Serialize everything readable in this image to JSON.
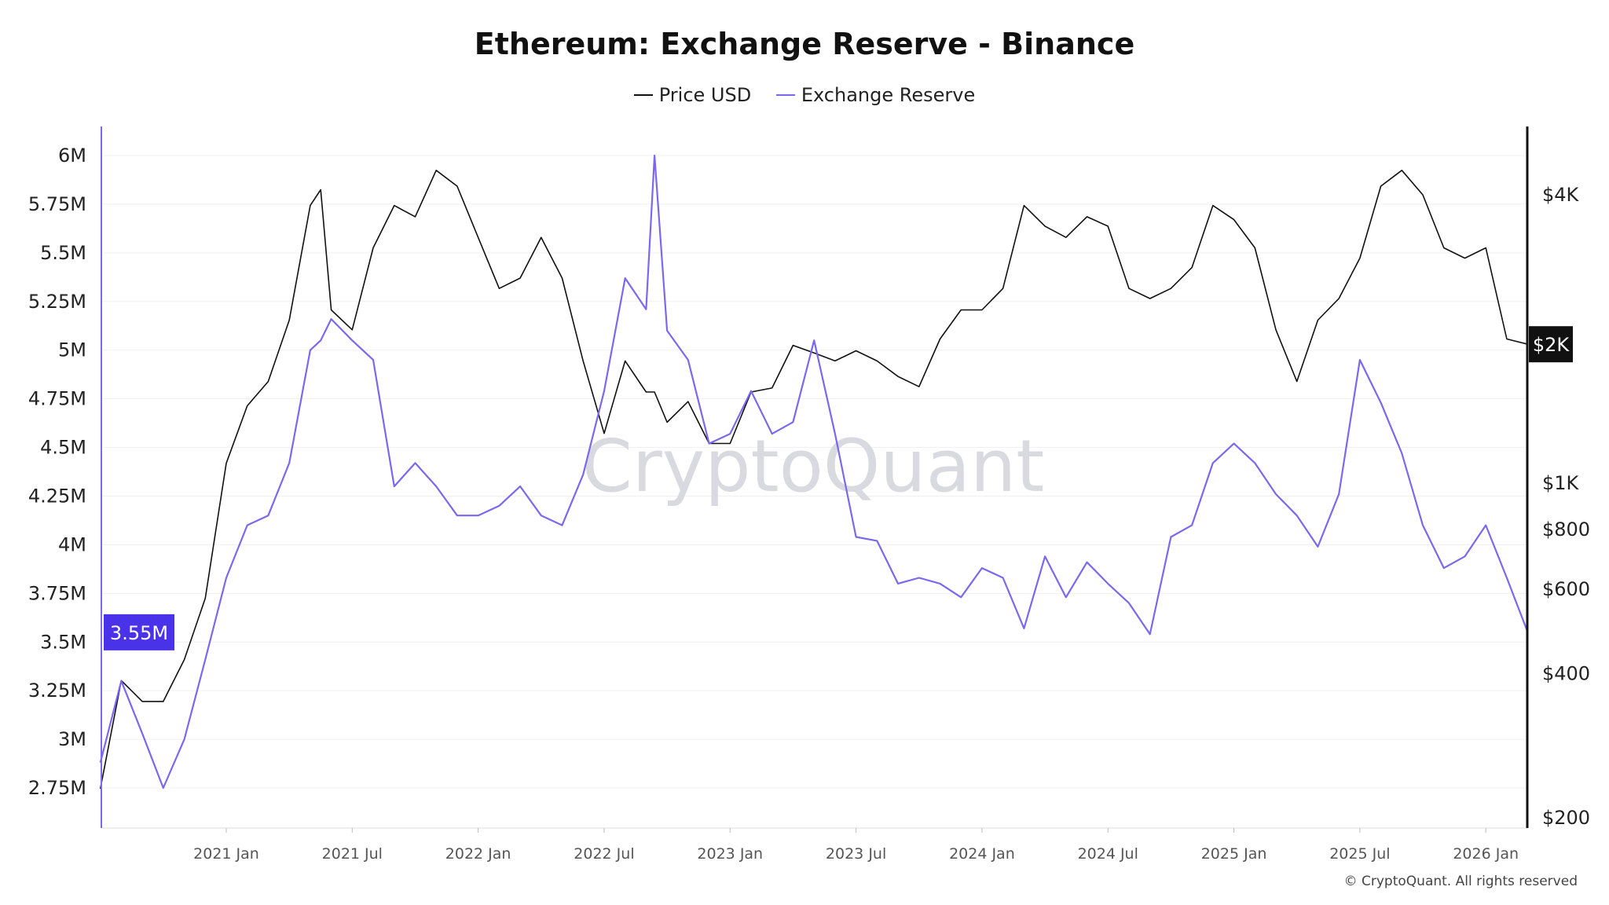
{
  "chart_data": {
    "type": "line",
    "title": "Ethereum: Exchange Reserve - Binance",
    "legend": {
      "placement": "top-center"
    },
    "grid": true,
    "x_ticks": [
      "2021 Jan",
      "2021 Jul",
      "2022 Jan",
      "2022 Jul",
      "2023 Jan",
      "2023 Jul",
      "2024 Jan",
      "2024 Jul",
      "2025 Jan",
      "2025 Jul",
      "2026 Jan"
    ],
    "x_tick_dates": [
      "2021-01",
      "2021-07",
      "2022-01",
      "2022-07",
      "2023-01",
      "2023-07",
      "2024-01",
      "2024-07",
      "2025-01",
      "2025-07",
      "2026-01"
    ],
    "left_axis": {
      "ticks": [
        "6M",
        "5.75M",
        "5.5M",
        "5.25M",
        "5M",
        "4.75M",
        "4.5M",
        "4.25M",
        "4M",
        "3.75M",
        "3.5M",
        "3.25M",
        "3M",
        "2.75M"
      ],
      "tick_values": [
        6,
        5.75,
        5.5,
        5.25,
        5,
        4.75,
        4.5,
        4.25,
        4,
        3.75,
        3.5,
        3.25,
        3,
        2.75
      ],
      "unit": "M",
      "current_label": "3.55M",
      "current_color": "#4a32e8"
    },
    "right_axis": {
      "scale": "log",
      "ticks": [
        "$4K",
        "$1K",
        "$800",
        "$600",
        "$400",
        "$200"
      ],
      "tick_values": [
        4000,
        1000,
        800,
        600,
        400,
        200
      ],
      "current_label": "$2K",
      "current_color": "#111111"
    },
    "x": [
      "2020-07",
      "2020-08",
      "2020-09",
      "2020-10",
      "2020-11",
      "2020-12",
      "2021-01",
      "2021-02",
      "2021-03",
      "2021-04",
      "2021-05",
      "2021-05.5",
      "2021-06",
      "2021-07",
      "2021-08",
      "2021-09",
      "2021-10",
      "2021-11",
      "2021-12",
      "2022-01",
      "2022-02",
      "2022-03",
      "2022-04",
      "2022-05",
      "2022-06",
      "2022-07",
      "2022-08",
      "2022-09",
      "2022-09.4",
      "2022-10",
      "2022-11",
      "2022-12",
      "2023-01",
      "2023-02",
      "2023-03",
      "2023-04",
      "2023-05",
      "2023-06",
      "2023-07",
      "2023-08",
      "2023-09",
      "2023-10",
      "2023-11",
      "2023-12",
      "2024-01",
      "2024-02",
      "2024-03",
      "2024-04",
      "2024-05",
      "2024-06",
      "2024-07",
      "2024-08",
      "2024-09",
      "2024-10",
      "2024-11",
      "2024-12",
      "2025-01",
      "2025-02",
      "2025-03",
      "2025-04",
      "2025-05",
      "2025-06",
      "2025-07",
      "2025-08",
      "2025-09",
      "2025-10",
      "2025-11",
      "2025-12",
      "2026-01",
      "2026-02",
      "2026-03"
    ],
    "series": [
      {
        "name": "Price USD",
        "axis": "right",
        "color": "#111111",
        "values": [
          230,
          387,
          350,
          350,
          428,
          575,
          1100,
          1450,
          1630,
          2190,
          3800,
          4100,
          2300,
          2090,
          3100,
          3800,
          3600,
          4500,
          4170,
          3260,
          2550,
          2680,
          3260,
          2680,
          1800,
          1270,
          1800,
          1550,
          1550,
          1340,
          1480,
          1210,
          1210,
          1550,
          1580,
          1940,
          1870,
          1800,
          1890,
          1800,
          1670,
          1590,
          2000,
          2300,
          2300,
          2550,
          3800,
          3440,
          3260,
          3600,
          3440,
          2550,
          2430,
          2550,
          2820,
          3800,
          3550,
          3100,
          2090,
          1630,
          2190,
          2430,
          2950,
          4170,
          4500,
          4000,
          3100,
          2950,
          3100,
          2000,
          1950
        ]
      },
      {
        "name": "Exchange Reserve",
        "axis": "left",
        "color": "#7b68ee",
        "values": [
          2.88,
          3.3,
          3.03,
          2.75,
          3.0,
          3.41,
          3.83,
          4.1,
          4.15,
          4.42,
          5.0,
          5.05,
          5.16,
          5.05,
          4.95,
          4.3,
          4.42,
          4.3,
          4.15,
          4.15,
          4.2,
          4.3,
          4.15,
          4.1,
          4.36,
          4.79,
          5.37,
          5.21,
          6.0,
          5.1,
          4.95,
          4.52,
          4.57,
          4.79,
          4.57,
          4.63,
          5.05,
          4.57,
          4.04,
          4.02,
          3.8,
          3.83,
          3.8,
          3.73,
          3.88,
          3.83,
          3.57,
          3.94,
          3.73,
          3.91,
          3.8,
          3.7,
          3.54,
          4.04,
          4.1,
          4.42,
          4.52,
          4.42,
          4.26,
          4.15,
          3.99,
          4.26,
          4.95,
          4.73,
          4.47,
          4.1,
          3.88,
          3.94,
          4.1,
          3.83,
          3.55
        ]
      }
    ]
  },
  "watermark": "CryptoQuant",
  "copyright": "© CryptoQuant. All rights reserved"
}
